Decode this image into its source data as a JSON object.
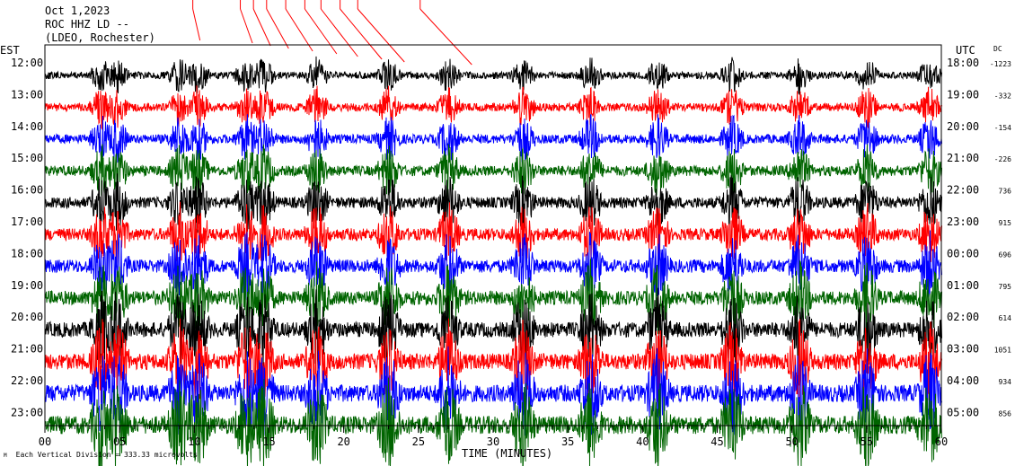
{
  "header": {
    "date": "Oct 1,2023",
    "station": "ROC HHZ LD --",
    "network": "(LDEO, Rochester)"
  },
  "left_axis_label": "EST",
  "right_axis_label": "UTC",
  "dc_label": "DC",
  "xlabel": "TIME (MINUTES)",
  "footer": "Each Vertical Division =  333.33 microvolts",
  "colors": {
    "trace_cycle": [
      "#000000",
      "#ff0000",
      "#0000ff",
      "#006400"
    ],
    "axis": "#000000",
    "event_marker": "#ff0000"
  },
  "chart_data": {
    "type": "line",
    "subtype": "helicorder",
    "title": "",
    "x_range": [
      0,
      60
    ],
    "x_ticks": [
      "00",
      "05",
      "10",
      "15",
      "20",
      "25",
      "30",
      "35",
      "40",
      "45",
      "50",
      "55",
      "60"
    ],
    "rows": [
      {
        "est": "12:00",
        "utc": "18:00",
        "dc": "-1223",
        "color": "#000000"
      },
      {
        "est": "13:00",
        "utc": "19:00",
        "dc": "-332",
        "color": "#ff0000"
      },
      {
        "est": "14:00",
        "utc": "20:00",
        "dc": "-154",
        "color": "#0000ff"
      },
      {
        "est": "15:00",
        "utc": "21:00",
        "dc": "-226",
        "color": "#006400"
      },
      {
        "est": "16:00",
        "utc": "22:00",
        "dc": "736",
        "color": "#000000"
      },
      {
        "est": "17:00",
        "utc": "23:00",
        "dc": "915",
        "color": "#ff0000"
      },
      {
        "est": "18:00",
        "utc": "00:00",
        "dc": "696",
        "color": "#0000ff"
      },
      {
        "est": "19:00",
        "utc": "01:00",
        "dc": "795",
        "color": "#006400"
      },
      {
        "est": "20:00",
        "utc": "02:00",
        "dc": "614",
        "color": "#000000"
      },
      {
        "est": "21:00",
        "utc": "03:00",
        "dc": "1051",
        "color": "#ff0000"
      },
      {
        "est": "22:00",
        "utc": "04:00",
        "dc": "934",
        "color": "#0000ff"
      },
      {
        "est": "23:00",
        "utc": "05:00",
        "dc": "856",
        "color": "#006400"
      }
    ],
    "burst_minutes": [
      3.8,
      4.8,
      9.0,
      10.2,
      13.5,
      14.6,
      18.2,
      23.0,
      27.0,
      32.0,
      36.5,
      41.0,
      46.0,
      50.5,
      55.0,
      59.2
    ],
    "event_marker_minutes": [
      10.5,
      13.8,
      14.8,
      15.8,
      17.2,
      18.6,
      19.8,
      21.2,
      22.5,
      26.8
    ]
  }
}
